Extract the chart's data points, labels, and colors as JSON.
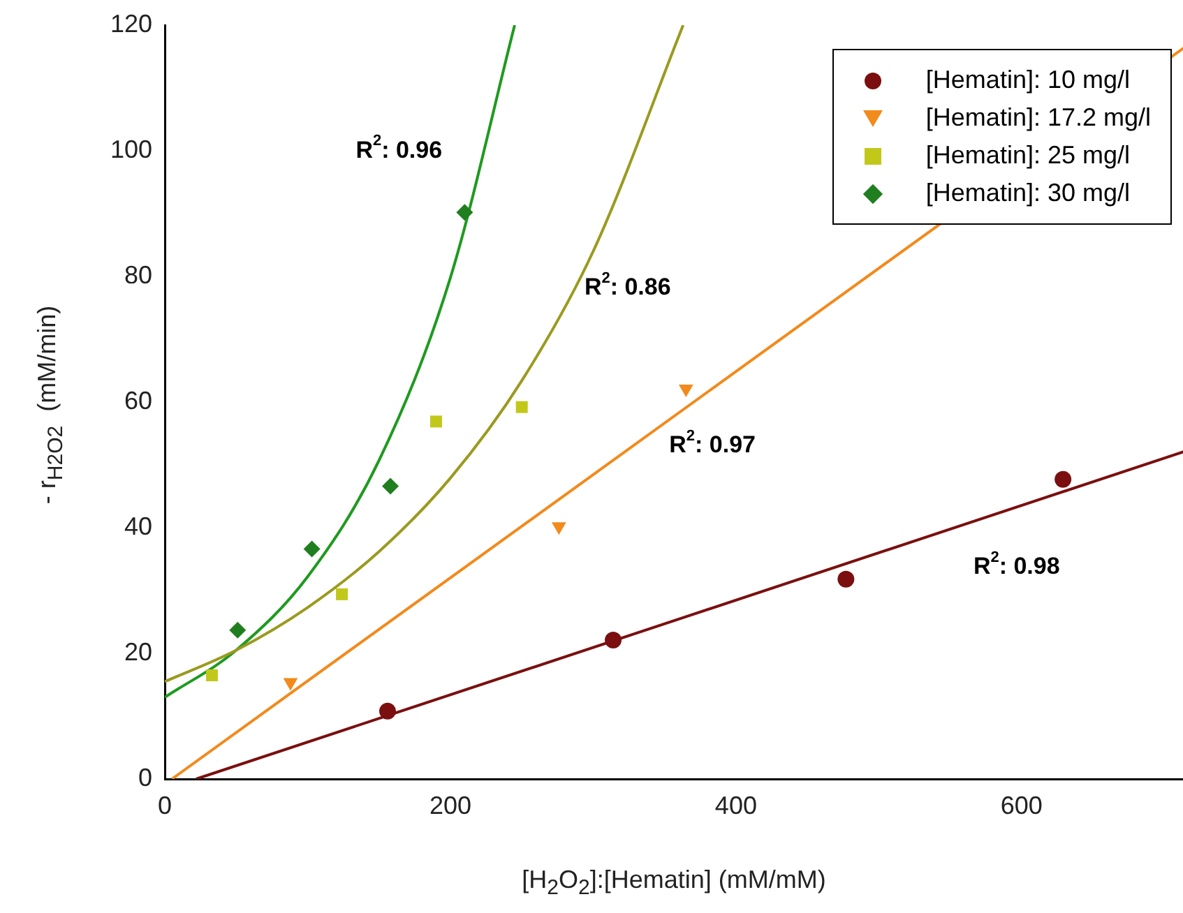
{
  "chart_data": {
    "type": "scatter",
    "xlabel": "[H$_{2}$O$_{2}$]:[Hematin] (mM/mM)",
    "ylabel": "- r$_{H2O2}$  (mM/min)",
    "xlim": [
      0,
      715
    ],
    "ylim": [
      0,
      120
    ],
    "xticks": [
      0,
      200,
      400,
      600
    ],
    "yticks": [
      0,
      20,
      40,
      60,
      80,
      100,
      120
    ],
    "grid": false,
    "legend": "top right",
    "series": [
      {
        "name": "[Hematin]: 10 mg/l",
        "color": "#7b0f0f",
        "marker": "circle",
        "x": [
          156,
          314,
          477,
          629
        ],
        "values": [
          10.8,
          22.1,
          31.8,
          47.7
        ]
      },
      {
        "name": "[Hematin]: 17.2  mg/l",
        "color": "#f28a1c",
        "marker": "triangle",
        "x": [
          88,
          276,
          365
        ],
        "values": [
          15.4,
          40.2,
          62.1
        ]
      },
      {
        "name": "[Hematin]: 25  mg/l",
        "color": "#c2c81a",
        "marker": "square",
        "x": [
          33,
          124,
          190,
          250
        ],
        "values": [
          16.5,
          29.4,
          56.9,
          59.2
        ]
      },
      {
        "name": "[Hematin]: 30 mg/l",
        "color": "#1f7f1f",
        "marker": "diamond",
        "x": [
          51,
          103,
          158,
          210
        ],
        "values": [
          23.7,
          36.6,
          46.6,
          90.2
        ]
      },
      {
        "type": "line",
        "color": "#7b0f0f",
        "marker": "none",
        "x": [
          22,
          715
        ],
        "values": [
          0,
          52.2
        ]
      },
      {
        "type": "line",
        "color": "#f28a1c",
        "marker": "none",
        "x": [
          5,
          715
        ],
        "values": [
          0,
          116.6
        ]
      },
      {
        "type": "line",
        "color": "#9a9a20",
        "marker": "none",
        "x": [
          0,
          50,
          100,
          150,
          200,
          250,
          300,
          363
        ],
        "values": [
          15.5,
          20.5,
          27.3,
          36.2,
          47.9,
          63.4,
          84.0,
          120
        ]
      },
      {
        "type": "line",
        "color": "#1f9a1f",
        "marker": "none",
        "x": [
          0,
          50,
          100,
          150,
          200,
          245
        ],
        "values": [
          13,
          20.5,
          32.2,
          50.7,
          79.8,
          120
        ]
      }
    ],
    "annotations": [
      "R$^{2}$: 0.96",
      "R$^{2}$: 0.86",
      "R$^{2}$: 0.97",
      "R$^{2}$: 0.98"
    ]
  }
}
